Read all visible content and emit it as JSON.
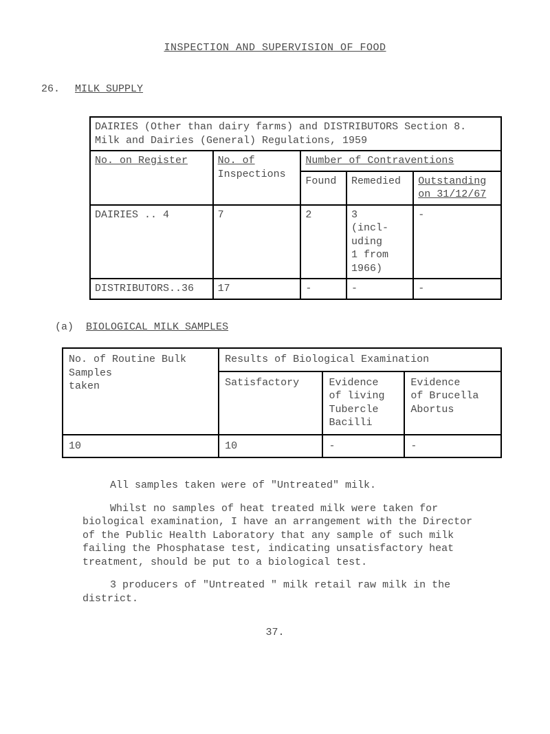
{
  "title": "INSPECTION AND SUPERVISION OF FOOD",
  "section": {
    "num": "26.",
    "label": "MILK SUPPLY"
  },
  "table1": {
    "caption": "DAIRIES (Other than dairy farms) and DISTRIBUTORS Section 8. Milk and Dairies (General) Regulations, 1959",
    "h_no_register": "No. on Register",
    "h_no_of": "No. of",
    "h_inspections": "Inspections",
    "h_contraventions": "Number of Contraventions",
    "h_found": "Found",
    "h_remedied": "Remedied",
    "h_outstanding": "Outstanding",
    "h_on_date": "on 31/12/67",
    "r1_label": "DAIRIES    .. 4",
    "r1_insp": "7",
    "r1_found": "2",
    "r1_remedied": "3\n(incl-\nuding\n1 from\n1966)",
    "r1_outstanding": "-",
    "r2_label": "DISTRIBUTORS..36",
    "r2_insp": "17",
    "r2_found": "-",
    "r2_remedied": "-",
    "r2_outstanding": "-"
  },
  "subA": {
    "label": "(a)",
    "text": "BIOLOGICAL MILK SAMPLES"
  },
  "table2": {
    "h_results": "Results of Biological Examination",
    "h_no_routine": "No. of Routine Bulk\nSamples\ntaken",
    "h_satisfactory": "Satisfactory",
    "h_evidence_living": "Evidence\nof living\nTubercle\nBacilli",
    "h_evidence_brucella": "Evidence\nof Brucella\nAbortus",
    "r_samples": "10",
    "r_satisfactory": "10",
    "r_living": "-",
    "r_brucella": "-"
  },
  "para1": "All samples taken were of \"Untreated\" milk.",
  "para2": "Whilst no samples of heat treated milk were taken for biological examination, I have an arrangement with the Director of the Public Health Laboratory that any sample of such milk failing the Phosphatase test, indicating unsatisfactory heat treatment, should be put to a biological test.",
  "para3": "3 producers of \"Untreated \" milk retail raw milk in the district.",
  "pagenum": "37."
}
